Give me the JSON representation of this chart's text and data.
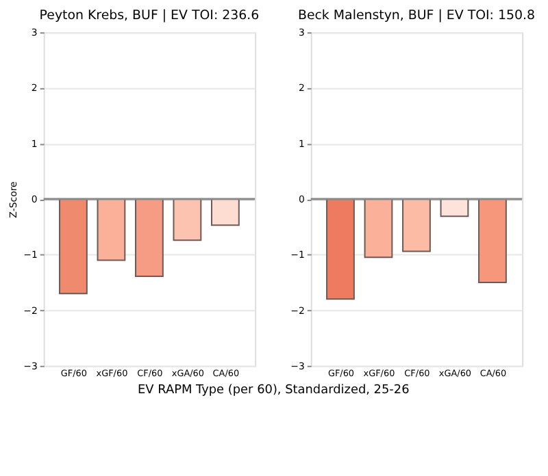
{
  "chart_data": [
    {
      "type": "bar",
      "title": "Peyton Krebs, BUF  |  EV TOI: 236.6",
      "ylabel": "Z-Score",
      "categories": [
        "GF/60",
        "xGF/60",
        "CF/60",
        "xGA/60",
        "CA/60"
      ],
      "values": [
        -1.7,
        -1.1,
        -1.39,
        -0.74,
        -0.47
      ],
      "colors": [
        "#f08a6e",
        "#fbb09a",
        "#f79c84",
        "#fcc3b0",
        "#fdddd2"
      ],
      "ylim": [
        -3,
        3
      ],
      "yticks": [
        -3,
        -2,
        -1,
        0,
        1,
        2,
        3
      ],
      "grid": "y",
      "ref_lines": [
        {
          "axis": "y",
          "value": 0,
          "color": "#888888"
        }
      ],
      "annotations": [
        "EV RAPM Type (per 60), Standardized, 25-26"
      ]
    },
    {
      "type": "bar",
      "title": "Beck Malenstyn, BUF  |  EV TOI: 150.8",
      "categories": [
        "GF/60",
        "xGF/60",
        "CF/60",
        "xGA/60",
        "CA/60"
      ],
      "values": [
        -1.8,
        -1.05,
        -0.94,
        -0.31,
        -1.5
      ],
      "colors": [
        "#ee7b5f",
        "#fbb09a",
        "#fcbba5",
        "#fde3d9",
        "#f6977c"
      ],
      "ylim": [
        -3,
        3
      ],
      "yticks": [
        -3,
        -2,
        -1,
        0,
        1,
        2,
        3
      ],
      "grid": "y",
      "ref_lines": [
        {
          "axis": "y",
          "value": 0,
          "color": "#888888"
        }
      ]
    }
  ]
}
